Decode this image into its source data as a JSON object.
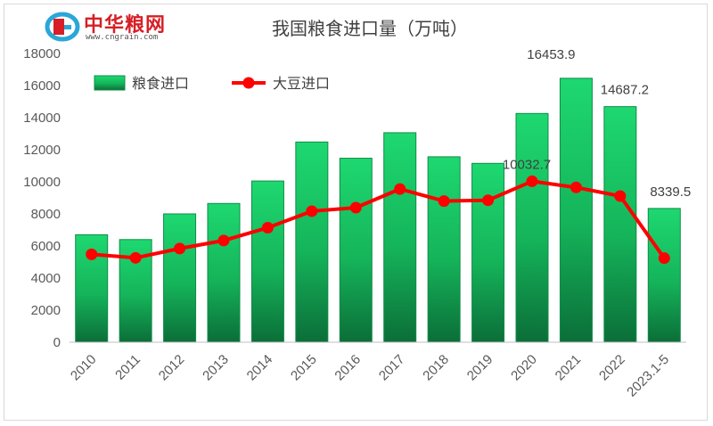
{
  "logo": {
    "name_cn": "中华粮网",
    "url_text": "www.cngrain.com"
  },
  "chart_data": {
    "type": "bar",
    "title": "我国粮食进口量（万吨）",
    "categories": [
      "2010",
      "2011",
      "2012",
      "2013",
      "2014",
      "2015",
      "2016",
      "2017",
      "2018",
      "2019",
      "2020",
      "2021",
      "2022",
      "2023.1-5"
    ],
    "series": [
      {
        "name": "粮食进口",
        "type": "bar",
        "color": "#1cc96b",
        "values": [
          6700,
          6400,
          8000,
          8650,
          10050,
          12480,
          11470,
          13060,
          11560,
          11150,
          14260,
          16453.9,
          14687.2,
          8339.5
        ]
      },
      {
        "name": "大豆进口",
        "type": "line",
        "color": "#ff0000",
        "values": [
          5480,
          5260,
          5840,
          6340,
          7140,
          8170,
          8390,
          9550,
          8800,
          8850,
          10032.7,
          9650,
          9110,
          5240
        ]
      }
    ],
    "data_labels": [
      {
        "series": 0,
        "index": 11,
        "text": "16453.9"
      },
      {
        "series": 0,
        "index": 12,
        "text": "14687.2"
      },
      {
        "series": 0,
        "index": 13,
        "text": "8339.5"
      },
      {
        "series": 1,
        "index": 10,
        "text": "10032.7"
      }
    ],
    "yticks": [
      "0",
      "2000",
      "4000",
      "6000",
      "8000",
      "10000",
      "12000",
      "14000",
      "16000",
      "18000"
    ],
    "ylim": [
      0,
      18000
    ],
    "grid": false,
    "legend_position": "top-left"
  }
}
